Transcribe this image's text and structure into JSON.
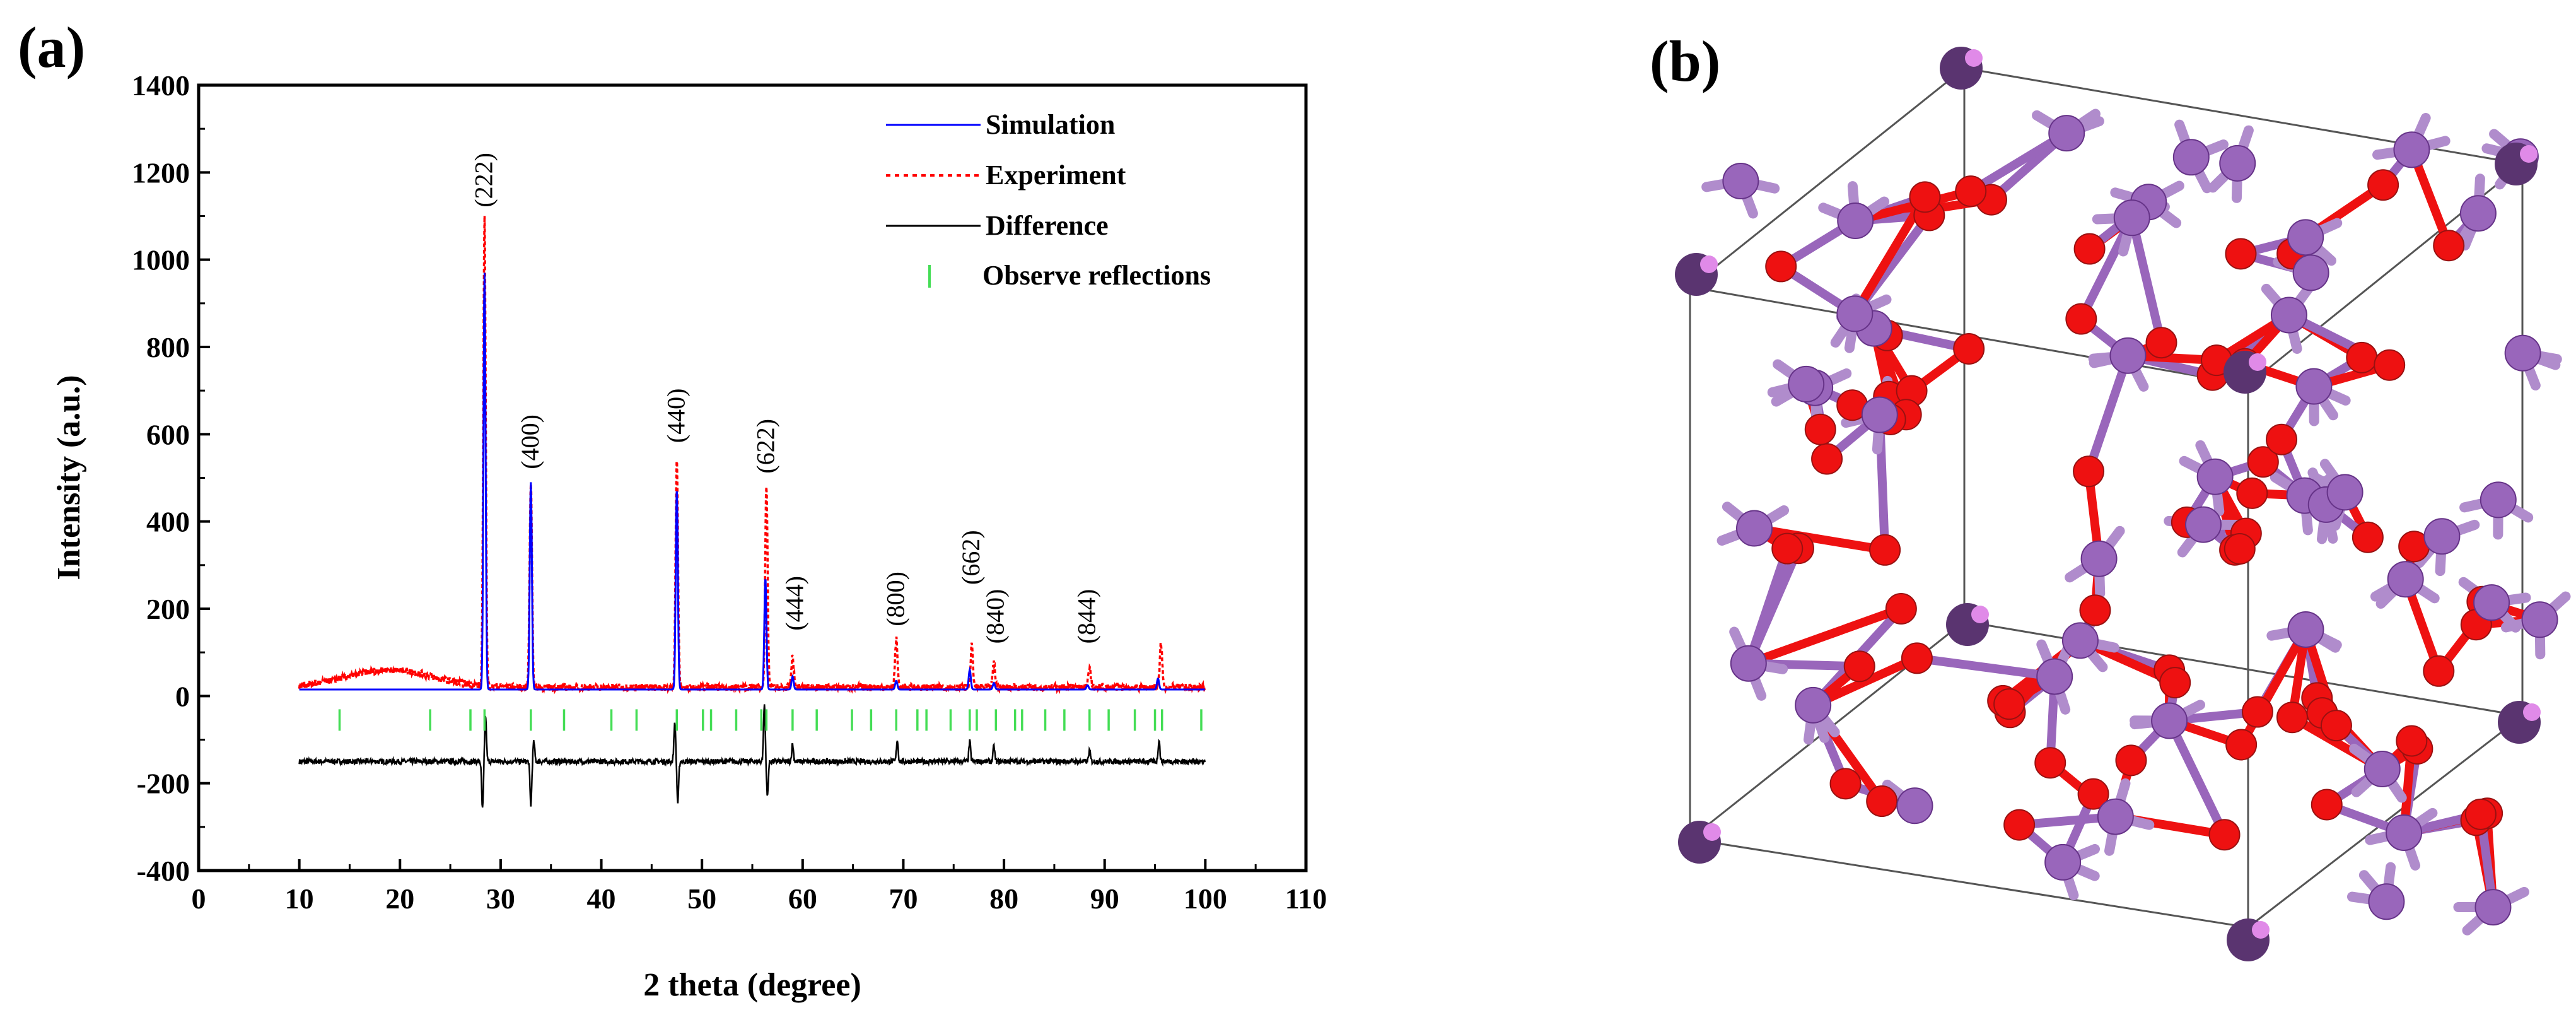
{
  "panels": {
    "a_label": "(a)",
    "b_label": "(b)"
  },
  "colors": {
    "simulation": "#0000ff",
    "experiment": "#ff0000",
    "difference": "#000000",
    "reflections": "#44dd55",
    "oxygen": "#ee1111",
    "manganese": "#9966bb",
    "manganese_light": "#b08ccc",
    "cell_edge": "#555555"
  },
  "chart_data": {
    "type": "line",
    "title": "",
    "xlabel": "2 theta (degree)",
    "ylabel": "Intensity (a.u.)",
    "xlim": [
      0,
      110
    ],
    "ylim": [
      -400,
      1400
    ],
    "xticks": [
      0,
      10,
      20,
      30,
      40,
      50,
      60,
      70,
      80,
      90,
      100,
      110
    ],
    "yticks": [
      -400,
      -200,
      0,
      200,
      400,
      600,
      800,
      1000,
      1200,
      1400
    ],
    "legend": [
      {
        "name": "Simulation",
        "style": "solid-blue-line"
      },
      {
        "name": "Experiment",
        "style": "dotted-red-line"
      },
      {
        "name": "Difference",
        "style": "solid-black-line"
      },
      {
        "name": "Observe reflections",
        "style": "green-tick"
      }
    ],
    "legend_position": "top-right",
    "series": [
      {
        "name": "Simulation",
        "x_range": [
          10,
          100
        ],
        "baseline": 15,
        "peaks": [
          {
            "x": 28.4,
            "y": 970
          },
          {
            "x": 33.0,
            "y": 490
          },
          {
            "x": 47.5,
            "y": 475
          },
          {
            "x": 56.3,
            "y": 270
          },
          {
            "x": 59.0,
            "y": 45
          },
          {
            "x": 69.3,
            "y": 35
          },
          {
            "x": 76.6,
            "y": 60
          },
          {
            "x": 79.0,
            "y": 30
          },
          {
            "x": 88.3,
            "y": 25
          },
          {
            "x": 95.3,
            "y": 40
          }
        ]
      },
      {
        "name": "Experiment",
        "x_range": [
          10,
          100
        ],
        "baseline": 20,
        "hump": {
          "center": 19,
          "height": 40
        },
        "peaks": [
          {
            "x": 28.4,
            "y": 1090
          },
          {
            "x": 33.0,
            "y": 490
          },
          {
            "x": 47.5,
            "y": 540
          },
          {
            "x": 56.4,
            "y": 480
          },
          {
            "x": 59.0,
            "y": 90
          },
          {
            "x": 69.3,
            "y": 130
          },
          {
            "x": 76.8,
            "y": 115
          },
          {
            "x": 79.0,
            "y": 75
          },
          {
            "x": 88.5,
            "y": 65
          },
          {
            "x": 95.6,
            "y": 120
          }
        ]
      },
      {
        "name": "Difference",
        "x_range": [
          10,
          100
        ],
        "offset": -150,
        "features": [
          {
            "x": 28.2,
            "y": -260
          },
          {
            "x": 28.5,
            "y": -45
          },
          {
            "x": 33.0,
            "y": -250
          },
          {
            "x": 33.3,
            "y": -105
          },
          {
            "x": 47.3,
            "y": -60
          },
          {
            "x": 47.6,
            "y": -245
          },
          {
            "x": 56.2,
            "y": -20
          },
          {
            "x": 56.5,
            "y": -230
          },
          {
            "x": 59.0,
            "y": -110
          },
          {
            "x": 69.4,
            "y": -100
          },
          {
            "x": 76.6,
            "y": -105
          },
          {
            "x": 79.0,
            "y": -115
          },
          {
            "x": 88.5,
            "y": -125
          },
          {
            "x": 95.4,
            "y": -100
          }
        ]
      }
    ],
    "reflection_marks": {
      "y_center": -55,
      "x": [
        14.0,
        23.0,
        27.0,
        28.4,
        33.0,
        36.3,
        41.0,
        43.5,
        47.5,
        50.1,
        50.9,
        53.4,
        55.9,
        56.4,
        59.0,
        61.4,
        64.9,
        66.8,
        69.3,
        71.4,
        72.3,
        74.7,
        76.6,
        77.3,
        79.2,
        81.1,
        81.8,
        84.1,
        86.0,
        88.5,
        90.4,
        93.0,
        95.0,
        95.7,
        99.6
      ]
    },
    "annotations": [
      {
        "text": "(222)",
        "x": 28.4,
        "y": 1120
      },
      {
        "text": "(400)",
        "x": 33.0,
        "y": 520
      },
      {
        "text": "(440)",
        "x": 47.5,
        "y": 580
      },
      {
        "text": "(622)",
        "x": 56.4,
        "y": 510
      },
      {
        "text": "(444)",
        "x": 59.3,
        "y": 150
      },
      {
        "text": "(800)",
        "x": 69.3,
        "y": 160
      },
      {
        "text": "(662)",
        "x": 76.8,
        "y": 255
      },
      {
        "text": "(840)",
        "x": 79.2,
        "y": 120
      },
      {
        "text": "(844)",
        "x": 88.3,
        "y": 120
      }
    ]
  }
}
